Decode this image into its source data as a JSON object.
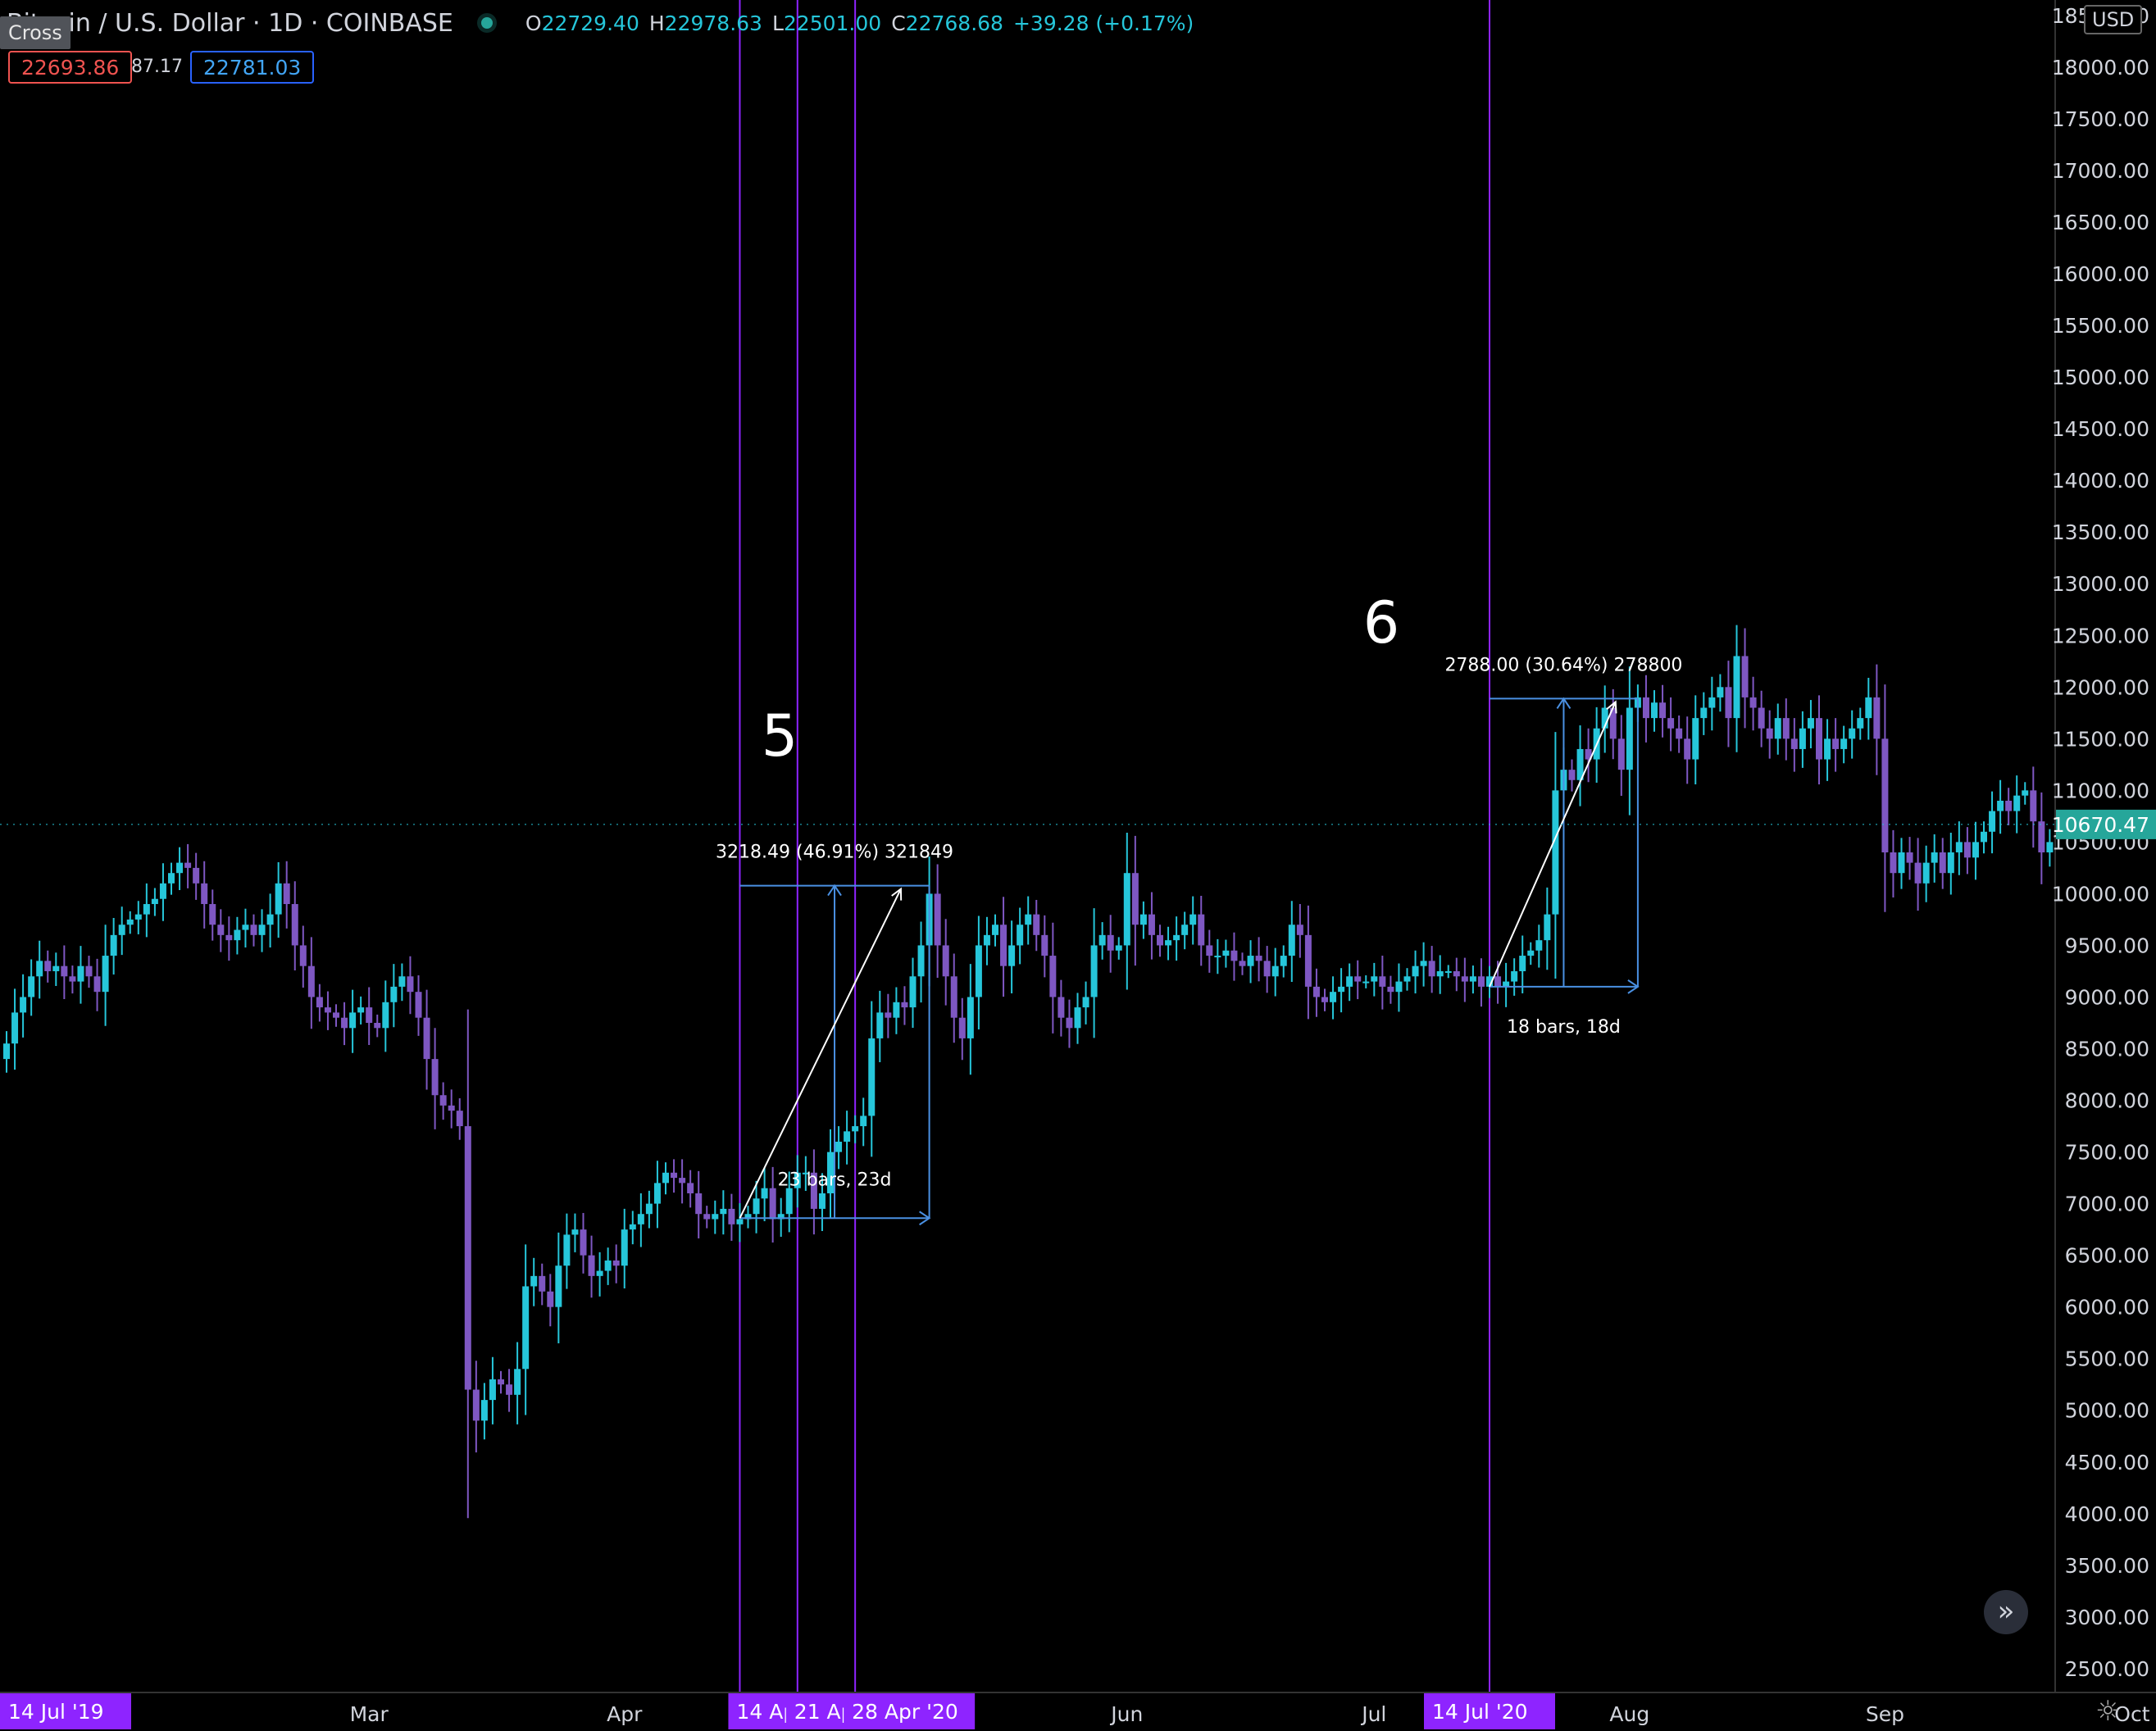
{
  "header": {
    "symbol": "Bitcoin / U.S. Dollar · 1D · COINBASE",
    "open_label": "O",
    "open": "22729.40",
    "high_label": "H",
    "high": "22978.63",
    "low_label": "L",
    "low": "22501.00",
    "close_label": "C",
    "close": "22768.68",
    "change": "+39.28 (+0.17%)",
    "cross_tooltip": "Cross",
    "bid": "22693.86",
    "spread": "87.17",
    "ask": "22781.03"
  },
  "currency": "USD",
  "nav_icon": "double-chevron-right-icon",
  "settings_icon": "gear-icon",
  "colors": {
    "up": "#26c6da",
    "down": "#7e57c2",
    "vline": "#8e24ff",
    "measure": "#4a90e2",
    "arrow": "#ffffff"
  },
  "chart_data": {
    "type": "candlestick",
    "y_axis": {
      "ticks": [
        "2500.00",
        "3000.00",
        "3500.00",
        "4000.00",
        "4500.00",
        "5000.00",
        "5500.00",
        "6000.00",
        "6500.00",
        "7000.00",
        "7500.00",
        "8000.00",
        "8500.00",
        "9000.00",
        "9500.00",
        "10000.00",
        "10500.00",
        "11000.00",
        "11500.00",
        "12000.00",
        "12500.00",
        "13000.00",
        "13500.00",
        "14000.00",
        "14500.00",
        "15000.00",
        "15500.00",
        "16000.00",
        "16500.00",
        "17000.00",
        "17500.00",
        "18000.00",
        "18500.00"
      ],
      "range": [
        2150,
        18650
      ]
    },
    "x_axis": {
      "labels": [
        {
          "text": "Mar",
          "index": 44
        },
        {
          "text": "Apr",
          "index": 75
        },
        {
          "text": "Jun",
          "index": 136
        },
        {
          "text": "Jul",
          "index": 166
        },
        {
          "text": "Aug",
          "index": 197
        },
        {
          "text": "Sep",
          "index": 228
        },
        {
          "text": "Oct",
          "index": 258
        }
      ],
      "highlighted": [
        {
          "text": "14 Jul '19",
          "index": 0
        },
        {
          "text": "14 Ap",
          "index": 89
        },
        {
          "text": "21 Ap",
          "index": 96
        },
        {
          "text": "28 Apr '20",
          "index": 103
        },
        {
          "text": "14 Jul '20",
          "index": 180
        }
      ]
    },
    "last_price": "10670.47",
    "vertical_lines": [
      89,
      96,
      103,
      180
    ],
    "closes": [
      8550,
      8850,
      9000,
      9200,
      9350,
      9250,
      9300,
      9200,
      9150,
      9300,
      9200,
      9050,
      9400,
      9600,
      9700,
      9750,
      9800,
      9900,
      9950,
      10100,
      10200,
      10300,
      10250,
      10100,
      9900,
      9700,
      9600,
      9550,
      9650,
      9700,
      9600,
      9700,
      9800,
      10100,
      9900,
      9500,
      9300,
      9000,
      8900,
      8850,
      8800,
      8700,
      8850,
      8900,
      8750,
      8700,
      8950,
      9100,
      9200,
      9050,
      8800,
      8400,
      8050,
      7950,
      7900,
      7750,
      5200,
      4900,
      5100,
      5300,
      5250,
      5150,
      5400,
      6200,
      6300,
      6150,
      6000,
      6400,
      6700,
      6750,
      6500,
      6300,
      6350,
      6450,
      6400,
      6750,
      6800,
      6900,
      7000,
      7200,
      7300,
      7250,
      7200,
      7100,
      6900,
      6850,
      6900,
      6950,
      6800,
      6850,
      6900,
      7050,
      7150,
      6850,
      6900,
      7150,
      7300,
      7300,
      6950,
      7100,
      7500,
      7600,
      7700,
      7750,
      7850,
      8600,
      8850,
      8800,
      8950,
      8900,
      9200,
      9500,
      10000,
      9500,
      9200,
      8800,
      8600,
      9000,
      9500,
      9600,
      9700,
      9300,
      9500,
      9700,
      9800,
      9600,
      9400,
      9000,
      8800,
      8700,
      8900,
      9000,
      9500,
      9600,
      9450,
      9500,
      10200,
      9700,
      9800,
      9600,
      9500,
      9550,
      9600,
      9700,
      9800,
      9500,
      9400,
      9400,
      9450,
      9350,
      9300,
      9400,
      9350,
      9200,
      9300,
      9400,
      9700,
      9600,
      9100,
      9000,
      8950,
      9050,
      9100,
      9200,
      9150,
      9150,
      9200,
      9100,
      9050,
      9150,
      9200,
      9300,
      9350,
      9200,
      9250,
      9250,
      9200,
      9150,
      9200,
      9100,
      9200,
      9100,
      9150,
      9250,
      9400,
      9450,
      9550,
      9800,
      11000,
      11200,
      11100,
      11400,
      11300,
      11600,
      11800,
      11500,
      11200,
      11800,
      11900,
      11700,
      11850,
      11700,
      11600,
      11500,
      11300,
      11700,
      11800,
      11900,
      12000,
      11700,
      12300,
      11900,
      11800,
      11600,
      11500,
      11700,
      11500,
      11400,
      11600,
      11700,
      11300,
      11500,
      11400,
      11500,
      11600,
      11700,
      11900,
      11500,
      10400,
      10200,
      10400,
      10300,
      10100,
      10300,
      10400,
      10200,
      10400,
      10500,
      10350,
      10500,
      10600,
      10800,
      10900,
      10800,
      10950,
      11000,
      10700,
      10400,
      10500,
      10700,
      10300,
      10700,
      10750,
      10700,
      10750,
      10800,
      10700,
      10650,
      10750,
      10600,
      10550,
      10700,
      10600,
      10650,
      10670
    ],
    "measures": [
      {
        "label": "3218.49 (46.91%) 321849",
        "bars_label": "23 bars, 23d",
        "number": "5",
        "from_index": 89,
        "to_index": 112,
        "low": 6860,
        "high": 10078
      },
      {
        "label": "2788.00 (30.64%) 278800",
        "bars_label": "18 bars, 18d",
        "number": "6",
        "from_index": 180,
        "to_index": 198,
        "low": 9100,
        "high": 11888
      }
    ]
  }
}
